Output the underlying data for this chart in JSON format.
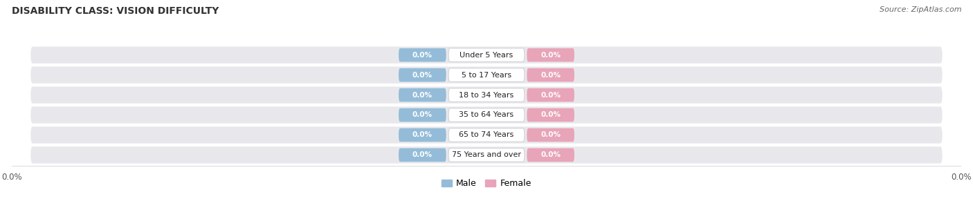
{
  "title": "DISABILITY CLASS: VISION DIFFICULTY",
  "source": "Source: ZipAtlas.com",
  "categories": [
    "Under 5 Years",
    "5 to 17 Years",
    "18 to 34 Years",
    "35 to 64 Years",
    "65 to 74 Years",
    "75 Years and over"
  ],
  "male_values": [
    0.0,
    0.0,
    0.0,
    0.0,
    0.0,
    0.0
  ],
  "female_values": [
    0.0,
    0.0,
    0.0,
    0.0,
    0.0,
    0.0
  ],
  "male_color": "#94bcd8",
  "female_color": "#e8a4b8",
  "row_bg_color": "#e8e8ec",
  "label_bg_color": "#ffffff",
  "figsize": [
    14.06,
    3.04
  ],
  "dpi": 100,
  "x_min": -100,
  "x_max": 100
}
